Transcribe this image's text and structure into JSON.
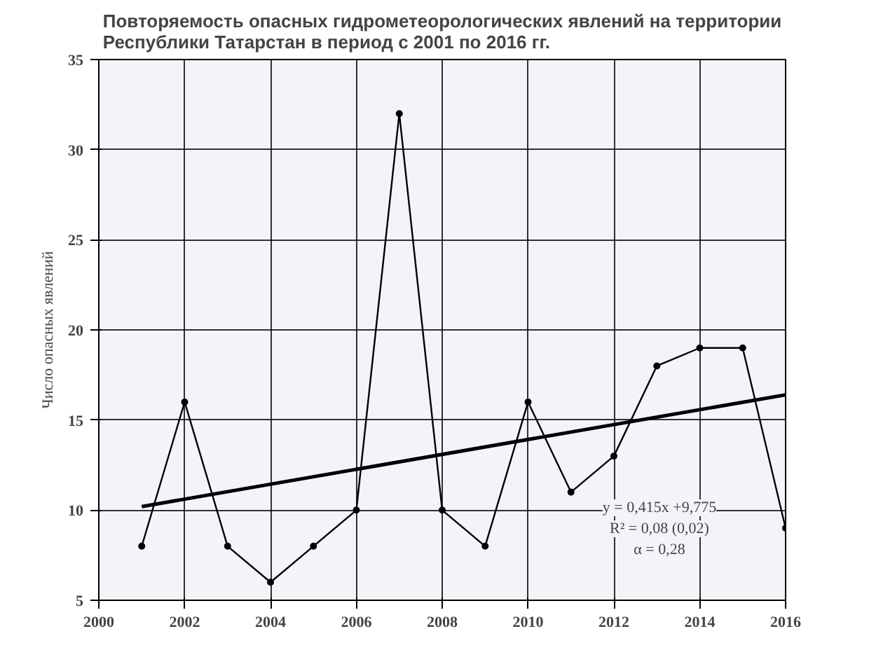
{
  "chart_data": {
    "type": "line",
    "title": "Повторяемость опасных гидрометеорологических явлений на территории\nРеспублики Татарстан в период с 2001 по 2016 гг.",
    "ylabel": "Число опасных явлений",
    "x": [
      2001,
      2002,
      2003,
      2004,
      2005,
      2006,
      2007,
      2008,
      2009,
      2010,
      2011,
      2012,
      2013,
      2014,
      2015,
      2016
    ],
    "series": [
      {
        "color": "#000000",
        "values": [
          8,
          16,
          8,
          6,
          8,
          10,
          32,
          10,
          8,
          16,
          11,
          13,
          18,
          19,
          19,
          9
        ]
      },
      {
        "type": "line",
        "color": "#000000",
        "x": [
          2001,
          2016
        ],
        "values": [
          10.2,
          16.4
        ],
        "marker": "none"
      }
    ],
    "xlim": [
      2000,
      2016
    ],
    "xticks": [
      2000,
      2002,
      2004,
      2006,
      2008,
      2010,
      2012,
      2014,
      2016
    ],
    "ylim": [
      5,
      35
    ],
    "yticks": [
      5,
      10,
      15,
      20,
      25,
      30,
      35
    ],
    "grid": true,
    "marker": "circle",
    "line_style": "solid",
    "annotations": [
      "y = 0,415x +9,775",
      "R² = 0,08 (0,02)",
      "α = 0,28"
    ]
  }
}
